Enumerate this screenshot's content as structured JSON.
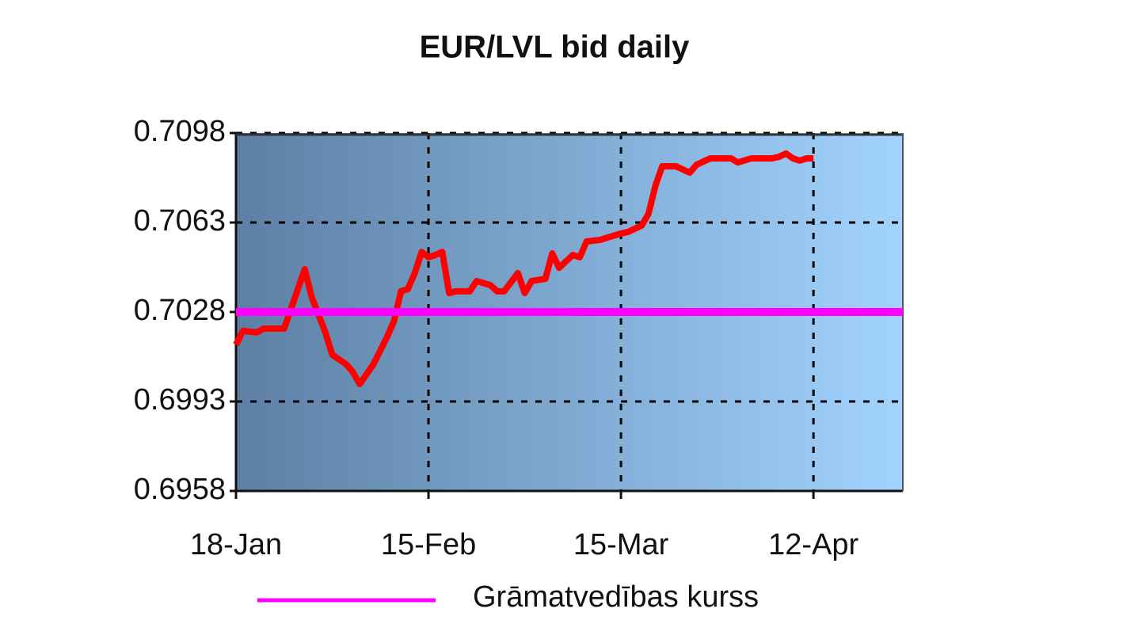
{
  "chart_data": {
    "type": "line",
    "title": "EUR/LVL bid daily",
    "xlim": [
      0,
      97
    ],
    "xticks": [
      {
        "value": 0,
        "label": "18-Jan"
      },
      {
        "value": 28,
        "label": "15-Feb"
      },
      {
        "value": 56,
        "label": "15-Mar"
      },
      {
        "value": 84,
        "label": "12-Apr"
      }
    ],
    "ylim": [
      0.6958,
      0.7098
    ],
    "yticks": [
      0.6958,
      0.6993,
      0.7028,
      0.7063,
      0.7098
    ],
    "grid": true,
    "legend": "bottom",
    "series": [
      {
        "color": "#ff0000",
        "x": [
          0,
          1,
          3,
          4,
          5,
          7,
          8,
          10,
          11,
          13,
          14,
          16,
          17,
          18,
          20,
          22,
          23,
          24,
          25,
          26,
          27,
          28,
          29,
          30,
          31,
          32,
          34,
          35,
          37,
          38,
          39,
          41,
          42,
          43,
          45,
          46,
          47,
          49,
          50,
          51,
          53,
          54,
          56,
          57,
          59,
          60,
          61,
          62,
          64,
          66,
          67,
          69,
          71,
          72,
          73,
          75,
          76,
          78,
          79,
          80,
          81,
          82,
          83,
          84
        ],
        "values": [
          0.70152,
          0.70206,
          0.702,
          0.70215,
          0.70215,
          0.70215,
          0.70292,
          0.70447,
          0.70339,
          0.702,
          0.70113,
          0.70076,
          0.70045,
          0.69998,
          0.70076,
          0.70184,
          0.70246,
          0.70361,
          0.7037,
          0.70432,
          0.70515,
          0.70494,
          0.70503,
          0.70515,
          0.70354,
          0.70361,
          0.70361,
          0.70401,
          0.70385,
          0.70361,
          0.70361,
          0.70432,
          0.70354,
          0.70401,
          0.7041,
          0.70509,
          0.70453,
          0.70503,
          0.70494,
          0.70556,
          0.70562,
          0.70571,
          0.70587,
          0.70593,
          0.70618,
          0.70664,
          0.70773,
          0.7085,
          0.7085,
          0.70825,
          0.70856,
          0.70881,
          0.70881,
          0.70881,
          0.70865,
          0.70881,
          0.70881,
          0.70881,
          0.70887,
          0.709,
          0.70881,
          0.70872,
          0.70881,
          0.70881
        ]
      },
      {
        "name": "Grāmatvedības kurss",
        "color": "#ff00ff",
        "x": [
          0,
          97
        ],
        "values": [
          0.7028,
          0.7028
        ]
      }
    ]
  }
}
